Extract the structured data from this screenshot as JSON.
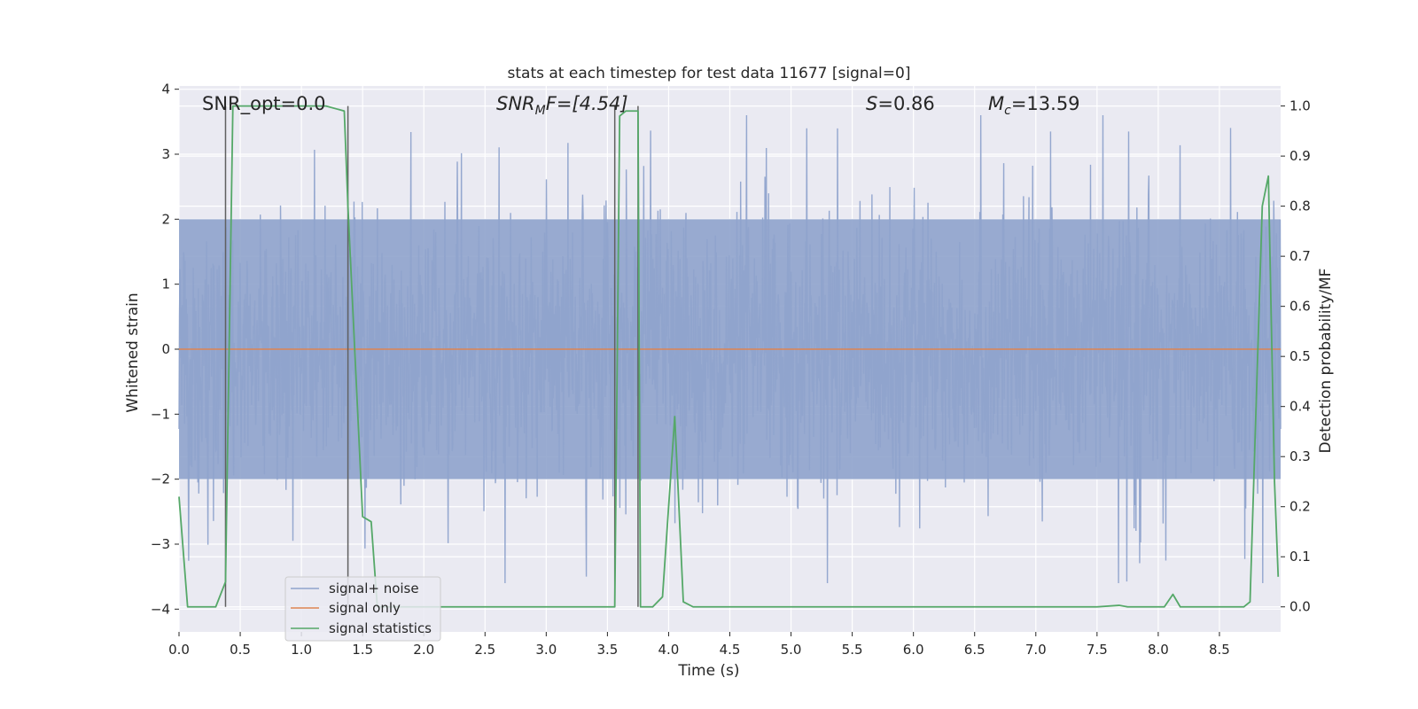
{
  "chart_data": {
    "type": "line",
    "title": "stats at each timestep for test data 11677 [signal=0]",
    "xlabel": "Time (s)",
    "ylabel_left": "Whitened strain",
    "ylabel_right": "Detection probability/MF",
    "xlim": [
      0.0,
      9.0
    ],
    "ylim_left": [
      -4.35,
      4.05
    ],
    "ylim_right": [
      -0.05,
      1.04
    ],
    "xticks": [
      "0.0",
      "0.5",
      "1.0",
      "1.5",
      "2.0",
      "2.5",
      "3.0",
      "3.5",
      "4.0",
      "4.5",
      "5.0",
      "5.5",
      "6.0",
      "6.5",
      "7.0",
      "7.5",
      "8.0",
      "8.5"
    ],
    "yticks_left": [
      "4",
      "3",
      "2",
      "1",
      "0",
      "−1",
      "−2",
      "−3",
      "−4"
    ],
    "yticks_right": [
      "1.0",
      "0.9",
      "0.8",
      "0.7",
      "0.6",
      "0.5",
      "0.4",
      "0.3",
      "0.2",
      "0.1",
      "0.0"
    ],
    "annotations": {
      "snr_opt": "SNR_opt=0.0",
      "snr_mf_sym": "SNR",
      "snr_mf_sub": "M",
      "snr_mf_rest": "F=[4.54]",
      "s_sym": "S",
      "s_val": "=0.86",
      "mc_sym": "M",
      "mc_sub": "c",
      "mc_val": "=13.59"
    },
    "legend": {
      "position": "lower-left",
      "entries": [
        "signal+ noise",
        "signal only",
        "signal statistics"
      ]
    },
    "colors": {
      "noise": "#8fa3cc",
      "signal_only": "#dd8452",
      "statistics": "#55a868",
      "markers": "#606060",
      "background": "#eaeaf2",
      "grid": "#ffffff"
    },
    "series": [
      {
        "name": "signal+ noise",
        "axis": "left",
        "kind": "noise-band",
        "band_low": -2.0,
        "band_high": 2.0,
        "typical_max": 3.6,
        "typical_min": -3.6,
        "x_start": 0.0,
        "x_end": 9.0
      },
      {
        "name": "signal only",
        "axis": "left",
        "x": [
          0.0,
          9.0
        ],
        "y": [
          0.0,
          0.0
        ]
      },
      {
        "name": "signal statistics",
        "axis": "right",
        "x": [
          0.0,
          0.07,
          0.3,
          0.38,
          0.44,
          0.5,
          1.2,
          1.35,
          1.38,
          1.5,
          1.57,
          1.62,
          1.75,
          3.2,
          3.56,
          3.6,
          3.65,
          3.75,
          3.77,
          3.8,
          3.87,
          3.95,
          4.0,
          4.05,
          4.12,
          4.2,
          4.5,
          5.0,
          6.0,
          7.5,
          7.68,
          7.75,
          8.05,
          8.12,
          8.18,
          8.3,
          8.7,
          8.75,
          8.85,
          8.9,
          8.95,
          8.98
        ],
        "y": [
          0.22,
          0.0,
          0.0,
          0.05,
          1.0,
          1.0,
          1.0,
          0.99,
          0.8,
          0.18,
          0.17,
          0.0,
          0.0,
          0.0,
          0.0,
          0.98,
          0.99,
          0.99,
          0.0,
          0.0,
          0.0,
          0.02,
          0.2,
          0.38,
          0.01,
          0.0,
          0.0,
          0.0,
          0.0,
          0.0,
          0.003,
          0.0,
          0.0,
          0.025,
          0.0,
          0.0,
          0.0,
          0.01,
          0.8,
          0.86,
          0.25,
          0.06
        ]
      },
      {
        "name": "markers",
        "axis": "right",
        "kind": "vertical-lines",
        "x": [
          0.38,
          1.38,
          3.56,
          3.75
        ]
      }
    ]
  }
}
